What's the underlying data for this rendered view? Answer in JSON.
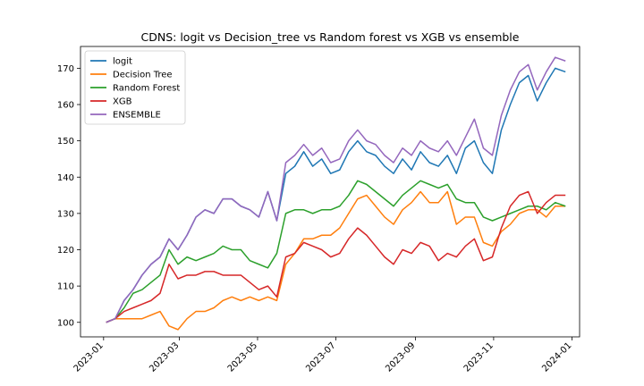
{
  "chart_data": {
    "type": "line",
    "title": "CDNS: logit vs Decision_tree vs Random forest vs XGB vs ensemble",
    "xlabel": "",
    "ylabel": "",
    "xlim": [
      "2022-12-14",
      "2024-01-07"
    ],
    "ylim": [
      96,
      176
    ],
    "grid": false,
    "legend_position": "upper-left",
    "x_ticks": [
      "2023-01",
      "2023-03",
      "2023-05",
      "2023-07",
      "2023-09",
      "2023-11",
      "2024-01"
    ],
    "y_ticks": [
      100,
      110,
      120,
      130,
      140,
      150,
      160,
      170
    ],
    "x": [
      "2023-01-03",
      "2023-01-10",
      "2023-01-17",
      "2023-01-24",
      "2023-01-31",
      "2023-02-07",
      "2023-02-14",
      "2023-02-21",
      "2023-02-28",
      "2023-03-07",
      "2023-03-14",
      "2023-03-21",
      "2023-03-28",
      "2023-04-04",
      "2023-04-11",
      "2023-04-18",
      "2023-04-25",
      "2023-05-02",
      "2023-05-09",
      "2023-05-16",
      "2023-05-23",
      "2023-05-30",
      "2023-06-06",
      "2023-06-13",
      "2023-06-20",
      "2023-06-27",
      "2023-07-04",
      "2023-07-11",
      "2023-07-18",
      "2023-07-25",
      "2023-08-01",
      "2023-08-08",
      "2023-08-15",
      "2023-08-22",
      "2023-08-29",
      "2023-09-05",
      "2023-09-12",
      "2023-09-19",
      "2023-09-26",
      "2023-10-03",
      "2023-10-10",
      "2023-10-17",
      "2023-10-24",
      "2023-10-31",
      "2023-11-07",
      "2023-11-14",
      "2023-11-21",
      "2023-11-28",
      "2023-12-05",
      "2023-12-12",
      "2023-12-19",
      "2023-12-27"
    ],
    "series": [
      {
        "name": "logit",
        "color": "#1f77b4",
        "values": [
          100,
          101,
          106,
          109,
          113,
          116,
          118,
          123,
          120,
          124,
          129,
          131,
          130,
          134,
          134,
          132,
          131,
          129,
          136,
          128,
          141,
          143,
          147,
          143,
          145,
          141,
          142,
          147,
          150,
          147,
          146,
          143,
          141,
          145,
          142,
          147,
          144,
          143,
          146,
          141,
          148,
          150,
          144,
          141,
          153,
          160,
          166,
          168,
          161,
          166,
          170,
          169
        ]
      },
      {
        "name": "Decision Tree",
        "color": "#ff7f0e",
        "values": [
          100,
          101,
          101,
          101,
          101,
          102,
          103,
          99,
          98,
          101,
          103,
          103,
          104,
          106,
          107,
          106,
          107,
          106,
          107,
          106,
          116,
          119,
          123,
          123,
          124,
          124,
          126,
          130,
          134,
          135,
          132,
          129,
          127,
          131,
          133,
          136,
          133,
          133,
          136,
          127,
          129,
          129,
          122,
          121,
          125,
          127,
          130,
          131,
          131,
          129,
          132,
          132
        ]
      },
      {
        "name": "Random Forest",
        "color": "#2ca02c",
        "values": [
          100,
          101,
          104,
          108,
          109,
          111,
          113,
          120,
          116,
          118,
          117,
          118,
          119,
          121,
          120,
          120,
          117,
          116,
          115,
          119,
          130,
          131,
          131,
          130,
          131,
          131,
          132,
          135,
          139,
          138,
          136,
          134,
          132,
          135,
          137,
          139,
          138,
          137,
          138,
          134,
          133,
          133,
          129,
          128,
          129,
          130,
          131,
          132,
          132,
          131,
          133,
          132
        ]
      },
      {
        "name": "XGB",
        "color": "#d62728",
        "values": [
          100,
          101,
          103,
          104,
          105,
          106,
          108,
          116,
          112,
          113,
          113,
          114,
          114,
          113,
          113,
          113,
          111,
          109,
          110,
          107,
          118,
          119,
          122,
          121,
          120,
          118,
          119,
          123,
          126,
          124,
          121,
          118,
          116,
          120,
          119,
          122,
          121,
          117,
          119,
          118,
          121,
          123,
          117,
          118,
          126,
          132,
          135,
          136,
          130,
          133,
          135,
          135
        ]
      },
      {
        "name": "ENSEMBLE",
        "color": "#9467bd",
        "values": [
          100,
          101,
          106,
          109,
          113,
          116,
          118,
          123,
          120,
          124,
          129,
          131,
          130,
          134,
          134,
          132,
          131,
          129,
          136,
          128,
          144,
          146,
          149,
          146,
          148,
          144,
          145,
          150,
          153,
          150,
          149,
          146,
          144,
          148,
          146,
          150,
          148,
          147,
          150,
          146,
          151,
          156,
          148,
          146,
          157,
          164,
          169,
          171,
          164,
          169,
          173,
          172
        ]
      }
    ]
  }
}
